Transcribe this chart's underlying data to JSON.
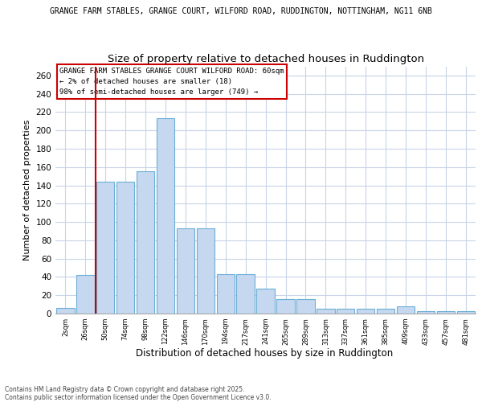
{
  "title_top": "GRANGE FARM STABLES, GRANGE COURT, WILFORD ROAD, RUDDINGTON, NOTTINGHAM, NG11 6NB",
  "title_main": "Size of property relative to detached houses in Ruddington",
  "xlabel": "Distribution of detached houses by size in Ruddington",
  "ylabel": "Number of detached properties",
  "annotation_title": "GRANGE FARM STABLES GRANGE COURT WILFORD ROAD: 60sqm",
  "annotation_line2": "← 2% of detached houses are smaller (18)",
  "annotation_line3": "98% of semi-detached houses are larger (749) →",
  "categories": [
    "2sqm",
    "26sqm",
    "50sqm",
    "74sqm",
    "98sqm",
    "122sqm",
    "146sqm",
    "170sqm",
    "194sqm",
    "217sqm",
    "241sqm",
    "265sqm",
    "289sqm",
    "313sqm",
    "337sqm",
    "361sqm",
    "385sqm",
    "409sqm",
    "433sqm",
    "457sqm",
    "481sqm"
  ],
  "values": [
    6,
    42,
    144,
    144,
    155,
    213,
    93,
    93,
    43,
    43,
    27,
    16,
    16,
    5,
    5,
    5,
    5,
    8,
    3,
    3,
    3
  ],
  "bar_color": "#c5d8f0",
  "bar_edge_color": "#6baed6",
  "vline_color": "#cc0000",
  "annotation_box_edgecolor": "#cc0000",
  "background_color": "#ffffff",
  "grid_color": "#c8d4e8",
  "ylim_max": 270,
  "yticks": [
    0,
    20,
    40,
    60,
    80,
    100,
    120,
    140,
    160,
    180,
    200,
    220,
    240,
    260
  ],
  "footer": "Contains HM Land Registry data © Crown copyright and database right 2025.\nContains public sector information licensed under the Open Government Licence v3.0."
}
